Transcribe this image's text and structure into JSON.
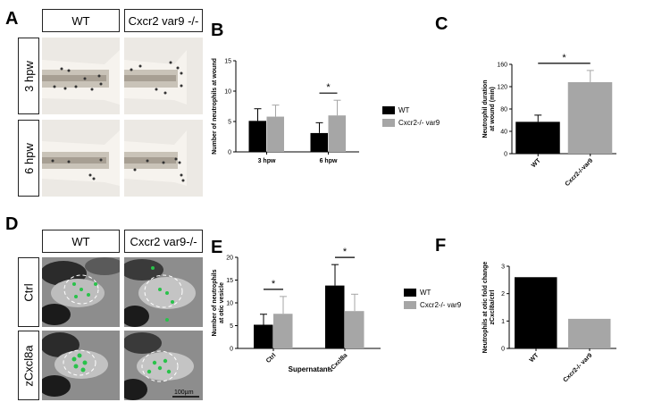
{
  "panels": {
    "A": {
      "label": "A",
      "columns": [
        "WT",
        "Cxcr2 var9 -/-"
      ],
      "rows": [
        "3 hpw",
        "6 hpw"
      ]
    },
    "D": {
      "label": "D",
      "columns": [
        "WT",
        "Cxcr2 var9-/-"
      ],
      "rows": [
        "Ctrl",
        "zCxcl8a"
      ],
      "scalebar": "100µm"
    }
  },
  "colors": {
    "wt": "#000000",
    "ko": "#a6a6a6",
    "green": "#29c24a"
  },
  "chart_data": [
    {
      "panel": "B",
      "type": "bar",
      "title": "",
      "xlabel": "",
      "ylabel": "Number of neutrophils at wound",
      "categories": [
        "3 hpw",
        "6 hpw"
      ],
      "series": [
        {
          "name": "WT",
          "values": [
            5.1,
            3.1
          ],
          "errors": [
            2.0,
            1.7
          ]
        },
        {
          "name": "Cxcr2-/- var9",
          "values": [
            5.8,
            6.0
          ],
          "errors": [
            1.9,
            2.5
          ]
        }
      ],
      "ylim": [
        0,
        15
      ],
      "yticks": [
        0,
        5,
        10,
        15
      ],
      "significance": [
        {
          "category": "6 hpw",
          "label": "*"
        }
      ],
      "legend": "right"
    },
    {
      "panel": "C",
      "type": "bar",
      "title": "",
      "xlabel": "",
      "ylabel": "Neutrophil duration at wound (min)",
      "categories": [
        "WT",
        "Cxcr2-/-var9"
      ],
      "values": [
        57,
        128
      ],
      "errors": [
        12,
        21
      ],
      "ylim": [
        0,
        160
      ],
      "yticks": [
        0,
        40,
        80,
        120,
        160
      ],
      "significance": [
        {
          "label": "*"
        }
      ]
    },
    {
      "panel": "E",
      "type": "bar",
      "title": "",
      "xlabel": "Supernatant",
      "ylabel": "Number of neutrophils at otic vesicle",
      "categories": [
        "Ctrl",
        "zCxcl8a"
      ],
      "series": [
        {
          "name": "WT",
          "values": [
            5.2,
            13.8
          ],
          "errors": [
            2.3,
            4.6
          ]
        },
        {
          "name": "Cxcr2-/- var9",
          "values": [
            7.6,
            8.2
          ],
          "errors": [
            3.8,
            3.7
          ]
        }
      ],
      "ylim": [
        0,
        20
      ],
      "yticks": [
        0,
        5,
        10,
        15,
        20
      ],
      "significance": [
        {
          "category": "Ctrl",
          "label": "*"
        },
        {
          "category": "zCxcl8a",
          "label": "*"
        }
      ],
      "legend": "right"
    },
    {
      "panel": "F",
      "type": "bar",
      "title": "",
      "xlabel": "",
      "ylabel": "Neutrophils at otic fold change zCxcl8a/ctrl",
      "categories": [
        "WT",
        "Cxcr2-/- var9"
      ],
      "values": [
        2.6,
        1.08
      ],
      "ylim": [
        0,
        3
      ],
      "yticks": [
        0,
        1,
        2,
        3
      ]
    }
  ]
}
